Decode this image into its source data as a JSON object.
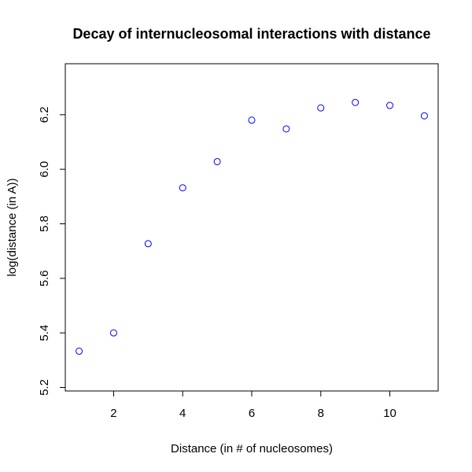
{
  "chart_data": {
    "type": "scatter",
    "title": "Decay of internucleosomal interactions with distance",
    "xlabel": "Distance (in # of nucleosomes)",
    "ylabel": "log(distance (in A))",
    "xlim": [
      0.6,
      11.4
    ],
    "ylim": [
      5.187,
      6.387
    ],
    "xticks": [
      2,
      4,
      6,
      8,
      10
    ],
    "yticks": [
      5.2,
      5.4,
      5.6,
      5.8,
      6.0,
      6.2
    ],
    "xtick_labels": [
      "2",
      "4",
      "6",
      "8",
      "10"
    ],
    "ytick_labels": [
      "5.2",
      "5.4",
      "5.6",
      "5.8",
      "6.0",
      "6.2"
    ],
    "grid": false,
    "marker": "open-circle",
    "point_color": "#0000ff",
    "x": [
      1,
      2,
      3,
      4,
      5,
      6,
      7,
      8,
      9,
      10,
      11
    ],
    "y": [
      5.333,
      5.4,
      5.727,
      5.932,
      6.028,
      6.18,
      6.148,
      6.225,
      6.245,
      6.234,
      6.196
    ]
  }
}
